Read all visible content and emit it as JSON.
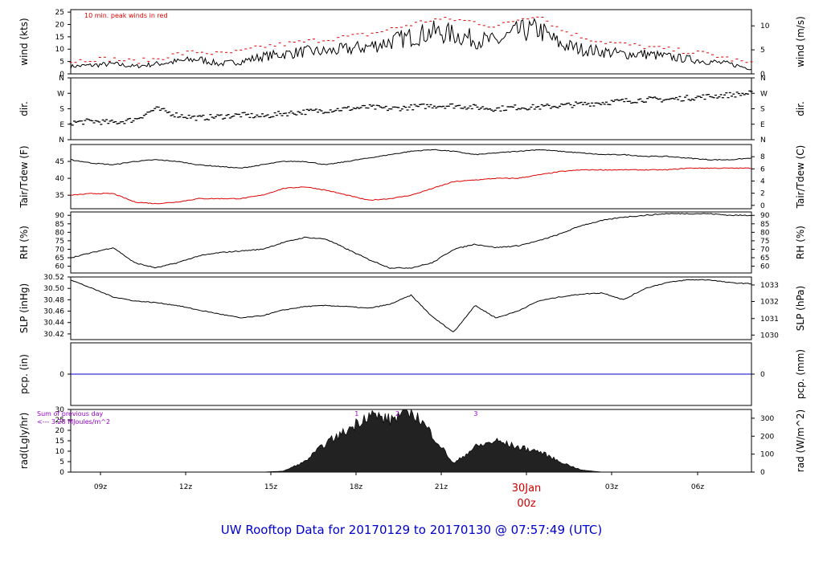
{
  "title": "UW Rooftop Data for 20170129  to  20170130 @ 07:57:49  (UTC)",
  "date_label_day": "30Jan",
  "date_label_hour": "00z",
  "colors": {
    "trace": "#000000",
    "red": "#dd0000",
    "blue": "#0000cc",
    "purple": "#9900cc",
    "title": "#0000cc"
  },
  "chart_data": [
    {
      "type": "line",
      "panel": "wind",
      "ylabel_left": "wind (kts)",
      "ylabel_right": "wind (m/s)",
      "ylim": [
        0,
        26
      ],
      "ticks_left": [
        0,
        5,
        10,
        15,
        20,
        25
      ],
      "ticks_right": [
        {
          "label": "0",
          "value": 0
        },
        {
          "label": "5",
          "value": 9.72
        },
        {
          "label": "10",
          "value": 19.44
        }
      ],
      "annotation": "10 min. peak winds in red",
      "series": [
        {
          "values": [
            3,
            3.5,
            4,
            3,
            4,
            5,
            6,
            4,
            5,
            7,
            8,
            9,
            9,
            10,
            11,
            13,
            15,
            17,
            16,
            14,
            13,
            17,
            18,
            12,
            10,
            9,
            8,
            8,
            7,
            6,
            5,
            4,
            2
          ]
        },
        {
          "name": "10 min. peak winds",
          "values": [
            5,
            6,
            6,
            5,
            6,
            8,
            9,
            8,
            9,
            11,
            12,
            13,
            14,
            15,
            16,
            18,
            20,
            22,
            22,
            21,
            19,
            22,
            24,
            18,
            15,
            13,
            12,
            11,
            10,
            9,
            8,
            6,
            4
          ]
        }
      ]
    },
    {
      "type": "scatter",
      "panel": "dir",
      "ylabel_left": "dir.",
      "ylabel_right": "dir.",
      "ylim": [
        0,
        4
      ],
      "ticks_left": [
        {
          "label": "N",
          "value": 0
        },
        {
          "label": "E",
          "value": 1
        },
        {
          "label": "S",
          "value": 2
        },
        {
          "label": "W",
          "value": 3
        },
        {
          "label": "N",
          "value": 4
        }
      ],
      "values": [
        1.1,
        1.2,
        1.1,
        1.3,
        2.0,
        1.6,
        1.4,
        1.5,
        1.6,
        1.5,
        1.7,
        1.8,
        1.9,
        2.0,
        2.1,
        2.0,
        2.1,
        2.2,
        2.2,
        2.1,
        2.0,
        2.1,
        2.1,
        2.2,
        2.3,
        2.4,
        2.5,
        2.6,
        2.6,
        2.7,
        2.8,
        2.9,
        3.0
      ]
    },
    {
      "type": "line",
      "panel": "temp",
      "ylabel_left": "Tair/Tdew (F)",
      "ylabel_right": "Tair/Tdew (C)",
      "ylim": [
        31,
        50
      ],
      "ticks_left": [
        35,
        40,
        45
      ],
      "ticks_right": [
        {
          "label": "0",
          "value": 32
        },
        {
          "label": "2",
          "value": 35.6
        },
        {
          "label": "4",
          "value": 39.2
        },
        {
          "label": "6",
          "value": 42.8
        },
        {
          "label": "8",
          "value": 46.4
        }
      ],
      "series": [
        {
          "name": "Tair",
          "values": [
            45.5,
            44.5,
            44,
            45,
            45.5,
            45,
            44,
            43.5,
            43,
            44,
            45,
            45,
            44,
            45,
            46,
            47,
            48,
            48.5,
            48,
            47,
            47.5,
            48,
            48.5,
            48,
            47.5,
            47,
            47,
            46.5,
            46.5,
            46,
            45.5,
            45.5,
            46
          ]
        },
        {
          "name": "Tdew",
          "values": [
            35,
            35.5,
            35.5,
            33,
            32.5,
            33,
            34,
            34,
            34,
            35,
            37,
            37.5,
            36.5,
            35,
            33.5,
            34,
            35,
            37,
            39,
            39.5,
            40,
            40,
            41,
            42,
            42.5,
            42.5,
            42.5,
            42.5,
            42.5,
            43,
            43,
            43,
            43
          ]
        }
      ]
    },
    {
      "type": "line",
      "panel": "rh",
      "ylabel_left": "RH (%)",
      "ylabel_right": "RH (%)",
      "ylim": [
        56,
        92
      ],
      "ticks_left": [
        60,
        65,
        70,
        75,
        80,
        85,
        90
      ],
      "series": [
        {
          "values": [
            65,
            68,
            71,
            62,
            59,
            62,
            66,
            68,
            69,
            70,
            74,
            77,
            76,
            70,
            64,
            59,
            59,
            62,
            70,
            73,
            71,
            72,
            75,
            79,
            84,
            87,
            89,
            90,
            91,
            91,
            91,
            90,
            90
          ]
        }
      ]
    },
    {
      "type": "line",
      "panel": "slp",
      "ylabel_left": "SLP (inHg)",
      "ylabel_right": "SLP (hPa)",
      "ylim": [
        30.41,
        30.52
      ],
      "ticks_left": [
        30.42,
        30.44,
        30.46,
        30.48,
        30.5,
        30.52
      ],
      "ticks_right": [
        {
          "label": "1030",
          "value": 30.418
        },
        {
          "label": "1031",
          "value": 30.447
        },
        {
          "label": "1032",
          "value": 30.477
        },
        {
          "label": "1033",
          "value": 30.506
        }
      ],
      "series": [
        {
          "values": [
            30.515,
            30.5,
            30.485,
            30.478,
            30.475,
            30.47,
            30.462,
            30.455,
            30.448,
            30.452,
            30.462,
            30.468,
            30.47,
            30.468,
            30.465,
            30.472,
            30.488,
            30.45,
            30.423,
            30.47,
            30.448,
            30.46,
            30.478,
            30.485,
            30.49,
            30.492,
            30.48,
            30.5,
            30.51,
            30.515,
            30.515,
            30.51,
            30.508
          ]
        }
      ]
    },
    {
      "type": "line",
      "panel": "pcp",
      "ylabel_left": "pcp. (in)",
      "ylabel_right": "pcp. (mm)",
      "ylim": [
        -1,
        1
      ],
      "ticks_left": [
        0
      ],
      "series": [
        {
          "values": [
            0,
            0
          ]
        }
      ]
    },
    {
      "type": "area",
      "panel": "rad",
      "ylabel_left": "rad(Lgly/hr)",
      "ylabel_right": "rad (W/m^2)",
      "ylim": [
        0,
        30
      ],
      "ticks_left": [
        0,
        5,
        10,
        15,
        20,
        25,
        30
      ],
      "ticks_right": [
        {
          "label": "0",
          "value": 0
        },
        {
          "label": "100",
          "value": 8.6
        },
        {
          "label": "200",
          "value": 17.2
        },
        {
          "label": "300",
          "value": 25.8
        }
      ],
      "annotations": [
        "Sum of previous day",
        "<--- 3.28 MJoules/m^2"
      ],
      "markers": [
        "1",
        "2",
        "3"
      ],
      "values": [
        0,
        0,
        0,
        0,
        0,
        0,
        0,
        0,
        0,
        0,
        0.5,
        5,
        14,
        20,
        28,
        25,
        30,
        18,
        4,
        12,
        15,
        12,
        10,
        5,
        1,
        0,
        0,
        0,
        0,
        0,
        0,
        0,
        0
      ]
    }
  ],
  "x_ticks": [
    "09z",
    "12z",
    "15z",
    "18z",
    "21z",
    "03z",
    "06z"
  ]
}
